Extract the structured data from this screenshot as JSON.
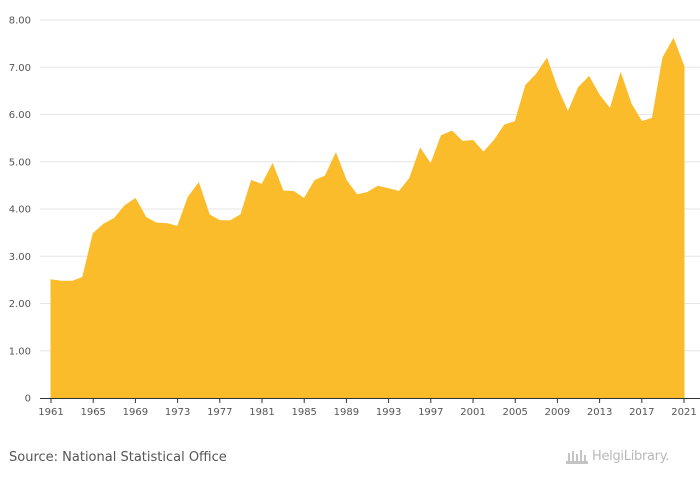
{
  "chart_data": {
    "type": "area",
    "title": "",
    "xlabel": "",
    "ylabel": "",
    "series": [
      {
        "name": "value",
        "color": "#FBBC2C",
        "x": [
          1961,
          1962,
          1963,
          1964,
          1965,
          1966,
          1967,
          1968,
          1969,
          1970,
          1971,
          1972,
          1973,
          1974,
          1975,
          1976,
          1977,
          1978,
          1979,
          1980,
          1981,
          1982,
          1983,
          1984,
          1985,
          1986,
          1987,
          1988,
          1989,
          1990,
          1991,
          1992,
          1993,
          1994,
          1995,
          1996,
          1997,
          1998,
          1999,
          2000,
          2001,
          2002,
          2003,
          2004,
          2005,
          2006,
          2007,
          2008,
          2009,
          2010,
          2011,
          2012,
          2013,
          2014,
          2015,
          2016,
          2017,
          2018,
          2019,
          2020,
          2021
        ],
        "values": [
          2.5,
          2.47,
          2.47,
          2.55,
          3.48,
          3.68,
          3.8,
          4.07,
          4.22,
          3.82,
          3.7,
          3.69,
          3.63,
          4.25,
          4.55,
          3.88,
          3.75,
          3.75,
          3.88,
          4.6,
          4.52,
          4.95,
          4.38,
          4.37,
          4.22,
          4.6,
          4.7,
          5.18,
          4.6,
          4.3,
          4.35,
          4.48,
          4.43,
          4.37,
          4.65,
          5.28,
          4.95,
          5.55,
          5.65,
          5.43,
          5.45,
          5.2,
          5.45,
          5.78,
          5.85,
          6.62,
          6.85,
          7.18,
          6.55,
          6.05,
          6.57,
          6.8,
          6.4,
          6.12,
          6.87,
          6.22,
          5.85,
          5.92,
          7.2,
          7.6,
          7.02
        ]
      }
    ],
    "ylim": [
      0,
      8
    ],
    "xlim": [
      1961,
      2021
    ],
    "yticks": [
      0,
      1,
      2,
      3,
      4,
      5,
      6,
      7,
      8
    ],
    "ytick_labels": [
      "0",
      "1.00",
      "2.00",
      "3.00",
      "4.00",
      "5.00",
      "6.00",
      "7.00",
      "8.00"
    ],
    "xticks": [
      1961,
      1965,
      1969,
      1973,
      1977,
      1981,
      1985,
      1989,
      1993,
      1997,
      2001,
      2005,
      2009,
      2013,
      2017,
      2021
    ],
    "xtick_labels": [
      "1961",
      "1965",
      "1969",
      "1973",
      "1977",
      "1981",
      "1985",
      "1989",
      "1993",
      "1997",
      "2001",
      "2005",
      "2009",
      "2013",
      "2017",
      "2021"
    ],
    "grid": true,
    "colors": {
      "area": "#FBBC2C",
      "grid": "#e6e6e6",
      "axis": "#333333"
    }
  },
  "footer": {
    "source": "Source: National Statistical Office",
    "logo_text": "HelgiLibrary."
  }
}
